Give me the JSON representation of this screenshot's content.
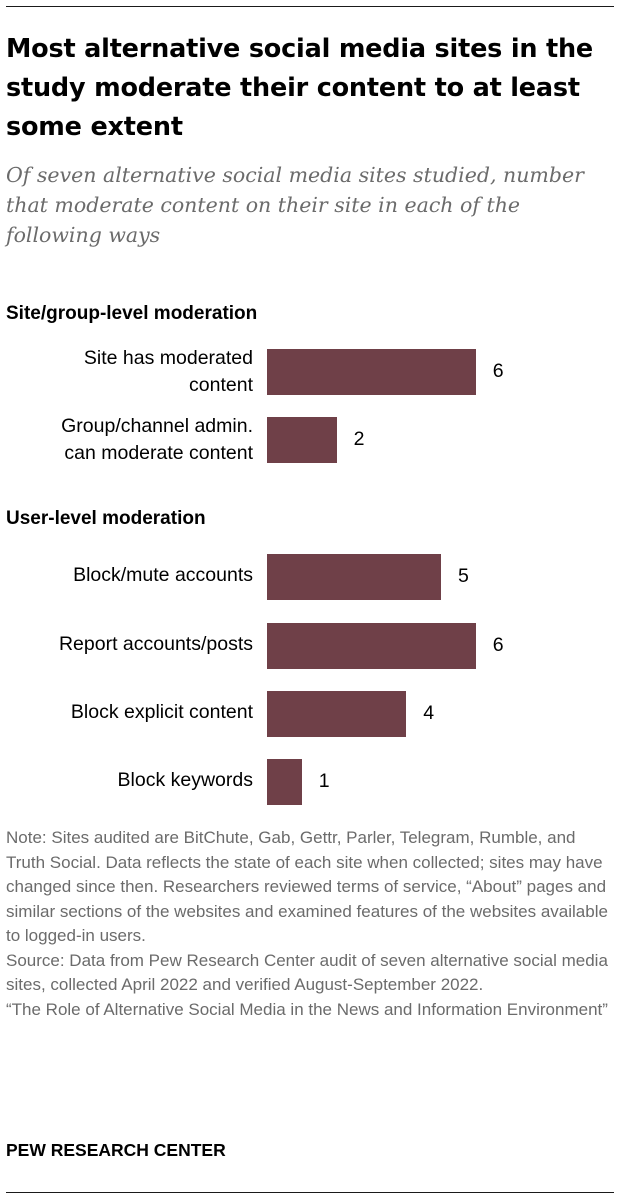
{
  "title": "Most alternative social media sites in the study moderate their content to at least some extent",
  "subtitle": "Of seven alternative social media sites studied, number that moderate content on their site in each of the following ways",
  "chart_data": {
    "type": "bar",
    "orientation": "horizontal",
    "xlim": [
      0,
      7
    ],
    "grid": false,
    "bar_color": "#6f4048",
    "groups": [
      {
        "name": "Site/group-level moderation",
        "categories": [
          "Site has moderated content",
          "Group/channel admin. can moderate content"
        ],
        "values": [
          6,
          2
        ]
      },
      {
        "name": "User-level moderation",
        "categories": [
          "Block/mute accounts",
          "Report accounts/posts",
          "Block explicit content",
          "Block keywords"
        ],
        "values": [
          5,
          6,
          4,
          1
        ]
      }
    ]
  },
  "notes": {
    "note": "Note: Sites audited are BitChute, Gab, Gettr, Parler, Telegram, Rumble, and Truth Social. Data reflects the state of each site when collected; sites may have changed since then. Researchers reviewed terms of service, “About” pages and similar sections of the websites and examined features of the websites available to logged-in users.",
    "source": "Source: Data from Pew Research Center audit of seven alternative social media sites, collected April 2022 and verified August-September 2022.",
    "report": "“The Role of Alternative Social Media in the News and Information Environment”"
  },
  "footer": "PEW RESEARCH CENTER"
}
